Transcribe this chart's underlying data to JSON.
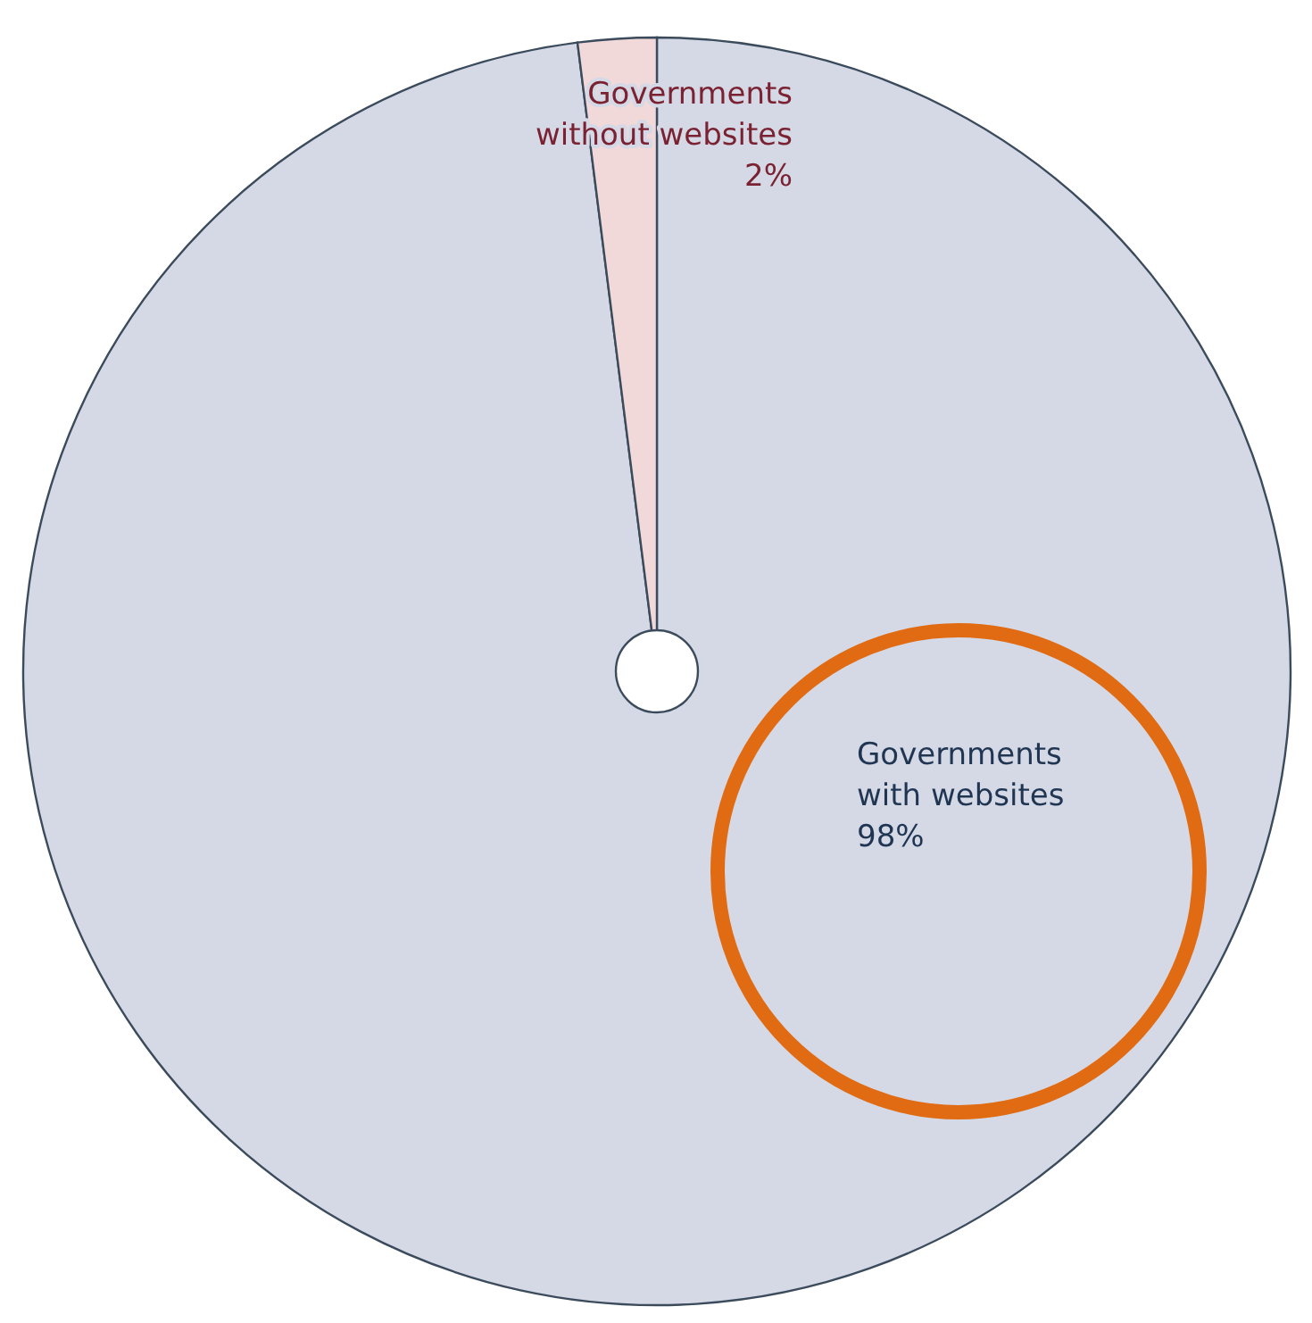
{
  "chart_data": {
    "type": "pie",
    "categories": [
      "Governments with websites",
      "Governments without websites"
    ],
    "values": [
      98,
      2
    ],
    "colors": [
      "#d5d9e6",
      "#f1d9da"
    ],
    "value_labels": [
      "98%",
      "2%"
    ]
  }
}
